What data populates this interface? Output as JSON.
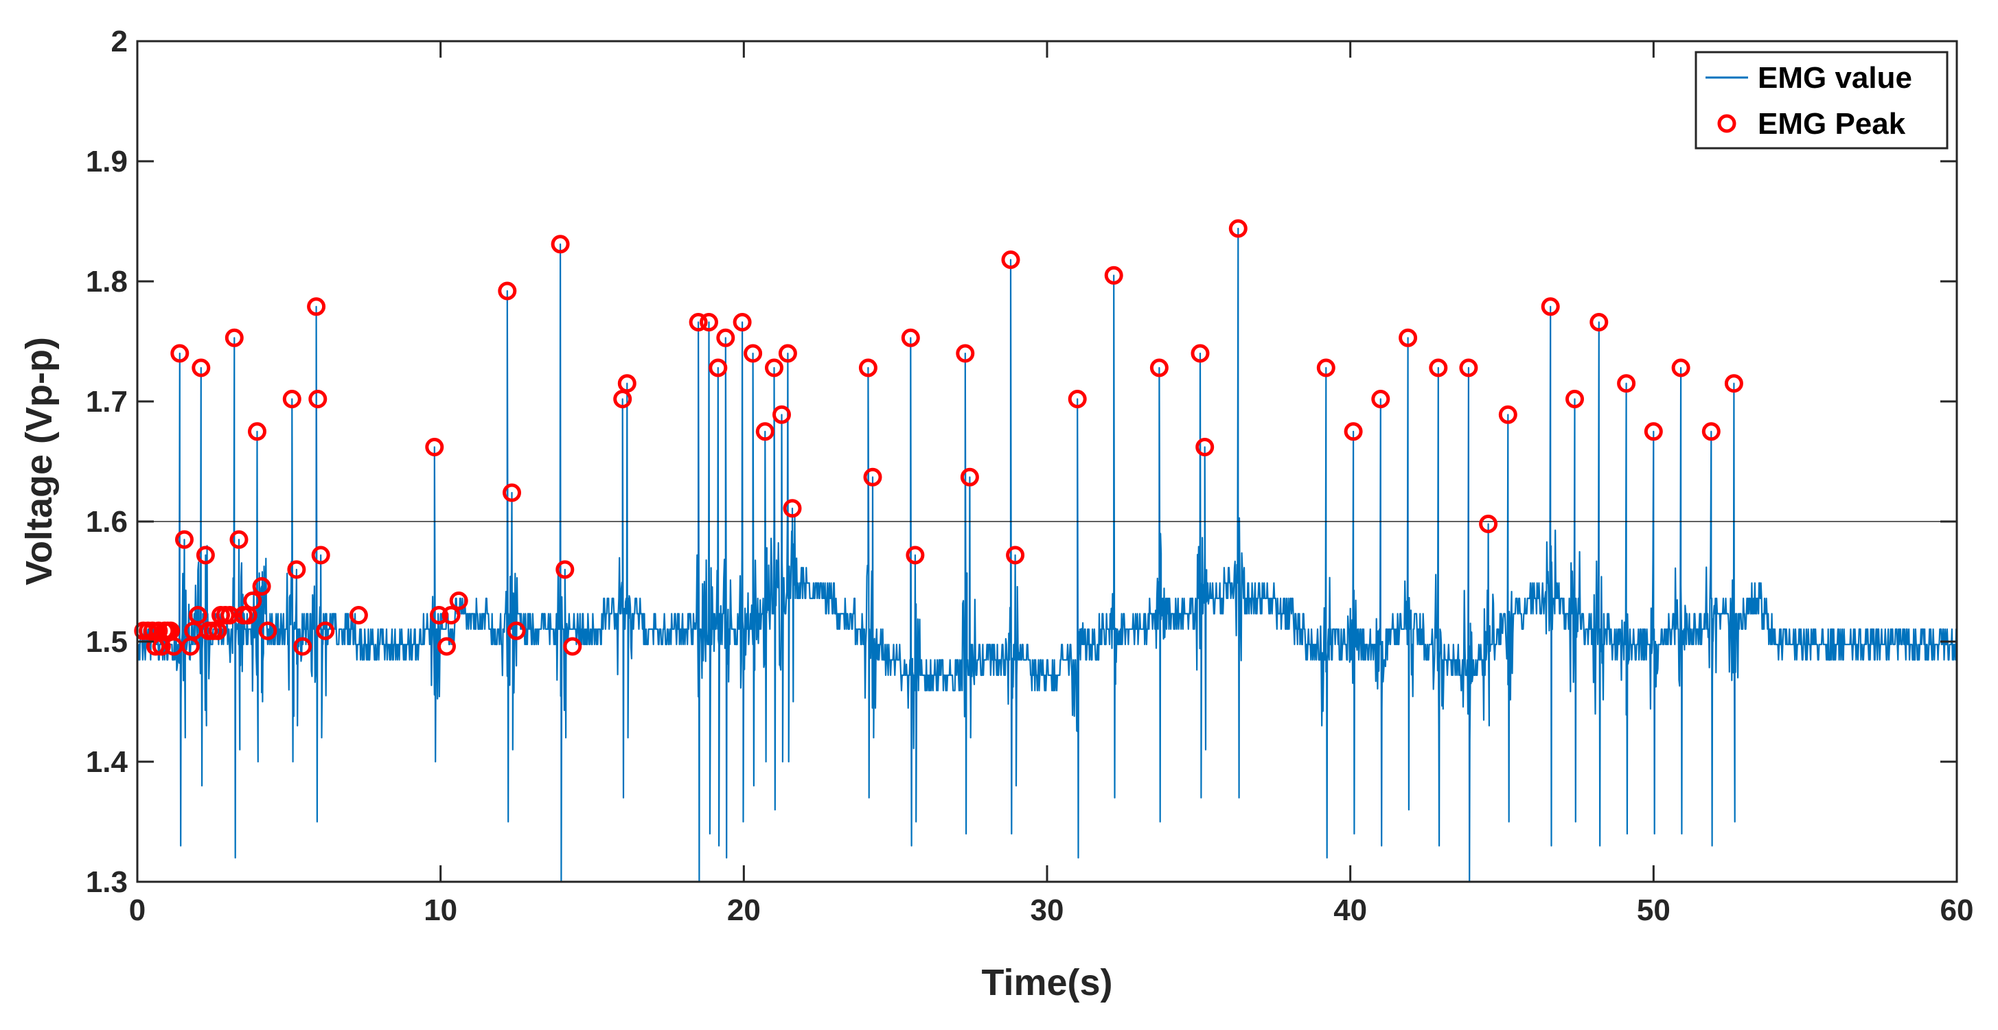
{
  "chart_data": {
    "type": "line",
    "title": "",
    "xlabel": "Time(s)",
    "ylabel": "Voltage (Vp-p)",
    "xlim": [
      0,
      60
    ],
    "ylim": [
      1.3,
      2
    ],
    "xticks": [
      "0",
      "10",
      "20",
      "30",
      "40",
      "50",
      "60"
    ],
    "yticks": [
      "1.3",
      "1.4",
      "1.5",
      "1.6",
      "1.7",
      "1.8",
      "1.9",
      "2"
    ],
    "threshold": 1.6,
    "grid": false,
    "legend_position": "top-right",
    "colors": {
      "signal": "#0072BD",
      "peak": "#FF0000",
      "threshold": "#000000",
      "axes": "#262626"
    },
    "series": [
      {
        "name": "EMG value",
        "style": "line"
      },
      {
        "name": "EMG Peak",
        "style": "circle"
      }
    ],
    "bursts": [
      [
        1.4,
        1.74,
        1.33
      ],
      [
        1.55,
        1.585,
        1.42
      ],
      [
        2.1,
        1.728,
        1.38
      ],
      [
        2.25,
        1.572,
        1.43
      ],
      [
        3.2,
        1.753,
        1.32
      ],
      [
        3.35,
        1.585,
        1.41
      ],
      [
        3.95,
        1.675,
        1.4
      ],
      [
        4.1,
        1.546,
        1.45
      ],
      [
        5.1,
        1.702,
        1.4
      ],
      [
        5.25,
        1.56,
        1.43
      ],
      [
        5.9,
        1.779,
        1.35
      ],
      [
        6.05,
        1.572,
        1.42
      ],
      [
        9.8,
        1.662,
        1.4
      ],
      [
        12.2,
        1.792,
        1.35
      ],
      [
        12.35,
        1.624,
        1.41
      ],
      [
        13.95,
        1.831,
        1.3
      ],
      [
        14.1,
        1.56,
        1.42
      ],
      [
        16.0,
        1.702,
        1.37
      ],
      [
        16.15,
        1.715,
        1.42
      ],
      [
        18.5,
        1.766,
        1.3
      ],
      [
        18.85,
        1.766,
        1.34
      ],
      [
        19.15,
        1.728,
        1.33
      ],
      [
        19.4,
        1.753,
        1.32
      ],
      [
        19.95,
        1.766,
        1.35
      ],
      [
        20.3,
        1.74,
        1.38
      ],
      [
        20.7,
        1.675,
        1.4
      ],
      [
        21.0,
        1.728,
        1.36
      ],
      [
        21.25,
        1.689,
        1.4
      ],
      [
        21.45,
        1.74,
        1.4
      ],
      [
        21.6,
        1.611,
        1.45
      ],
      [
        24.1,
        1.728,
        1.37
      ],
      [
        24.25,
        1.637,
        1.42
      ],
      [
        25.5,
        1.753,
        1.33
      ],
      [
        25.65,
        1.572,
        1.35
      ],
      [
        27.3,
        1.74,
        1.34
      ],
      [
        27.45,
        1.637,
        1.42
      ],
      [
        28.8,
        1.818,
        1.34
      ],
      [
        28.95,
        1.572,
        1.38
      ],
      [
        31.0,
        1.702,
        1.32
      ],
      [
        32.2,
        1.805,
        1.37
      ],
      [
        33.7,
        1.728,
        1.35
      ],
      [
        35.05,
        1.74,
        1.37
      ],
      [
        35.2,
        1.662,
        1.41
      ],
      [
        36.3,
        1.844,
        1.37
      ],
      [
        39.2,
        1.728,
        1.32
      ],
      [
        40.1,
        1.675,
        1.34
      ],
      [
        41.0,
        1.702,
        1.33
      ],
      [
        41.9,
        1.753,
        1.36
      ],
      [
        42.9,
        1.728,
        1.33
      ],
      [
        43.9,
        1.728,
        1.3
      ],
      [
        44.55,
        1.598,
        1.43
      ],
      [
        45.2,
        1.689,
        1.35
      ],
      [
        46.6,
        1.779,
        1.33
      ],
      [
        47.4,
        1.702,
        1.35
      ],
      [
        48.2,
        1.766,
        1.33
      ],
      [
        49.1,
        1.715,
        1.34
      ],
      [
        50.0,
        1.675,
        1.34
      ],
      [
        50.9,
        1.728,
        1.34
      ],
      [
        51.9,
        1.675,
        1.33
      ],
      [
        52.65,
        1.715,
        1.35
      ]
    ],
    "peaks": [
      [
        0.2,
        1.509
      ],
      [
        0.35,
        1.509
      ],
      [
        0.5,
        1.509
      ],
      [
        0.6,
        1.496
      ],
      [
        0.7,
        1.509
      ],
      [
        0.8,
        1.496
      ],
      [
        0.9,
        1.509
      ],
      [
        1.0,
        1.509
      ],
      [
        1.1,
        1.509
      ],
      [
        1.2,
        1.496
      ],
      [
        1.4,
        1.74
      ],
      [
        1.55,
        1.585
      ],
      [
        1.75,
        1.496
      ],
      [
        1.85,
        1.509
      ],
      [
        2.0,
        1.522
      ],
      [
        2.1,
        1.728
      ],
      [
        2.25,
        1.572
      ],
      [
        2.35,
        1.509
      ],
      [
        2.5,
        1.509
      ],
      [
        2.65,
        1.509
      ],
      [
        2.75,
        1.522
      ],
      [
        2.9,
        1.522
      ],
      [
        3.05,
        1.522
      ],
      [
        3.2,
        1.753
      ],
      [
        3.35,
        1.585
      ],
      [
        3.5,
        1.522
      ],
      [
        3.65,
        1.522
      ],
      [
        3.8,
        1.534
      ],
      [
        3.95,
        1.675
      ],
      [
        4.1,
        1.546
      ],
      [
        4.3,
        1.509
      ],
      [
        5.1,
        1.702
      ],
      [
        5.25,
        1.56
      ],
      [
        5.45,
        1.496
      ],
      [
        5.9,
        1.779
      ],
      [
        5.95,
        1.702
      ],
      [
        6.05,
        1.572
      ],
      [
        6.2,
        1.509
      ],
      [
        7.3,
        1.522
      ],
      [
        9.8,
        1.662
      ],
      [
        9.95,
        1.522
      ],
      [
        10.2,
        1.496
      ],
      [
        10.35,
        1.522
      ],
      [
        10.6,
        1.534
      ],
      [
        12.2,
        1.792
      ],
      [
        12.35,
        1.624
      ],
      [
        12.5,
        1.509
      ],
      [
        13.95,
        1.831
      ],
      [
        14.1,
        1.56
      ],
      [
        14.35,
        1.496
      ],
      [
        16.0,
        1.702
      ],
      [
        16.15,
        1.715
      ],
      [
        18.5,
        1.766
      ],
      [
        18.85,
        1.766
      ],
      [
        19.15,
        1.728
      ],
      [
        19.4,
        1.753
      ],
      [
        19.95,
        1.766
      ],
      [
        20.3,
        1.74
      ],
      [
        20.7,
        1.675
      ],
      [
        21.0,
        1.728
      ],
      [
        21.25,
        1.689
      ],
      [
        21.45,
        1.74
      ],
      [
        21.6,
        1.611
      ],
      [
        24.1,
        1.728
      ],
      [
        24.25,
        1.637
      ],
      [
        25.5,
        1.753
      ],
      [
        25.65,
        1.572
      ],
      [
        27.3,
        1.74
      ],
      [
        27.45,
        1.637
      ],
      [
        28.8,
        1.818
      ],
      [
        28.95,
        1.572
      ],
      [
        31.0,
        1.702
      ],
      [
        32.2,
        1.805
      ],
      [
        33.7,
        1.728
      ],
      [
        35.05,
        1.74
      ],
      [
        35.2,
        1.662
      ],
      [
        36.3,
        1.844
      ],
      [
        39.2,
        1.728
      ],
      [
        40.1,
        1.675
      ],
      [
        41.0,
        1.702
      ],
      [
        41.9,
        1.753
      ],
      [
        42.9,
        1.728
      ],
      [
        43.9,
        1.728
      ],
      [
        44.55,
        1.598
      ],
      [
        45.2,
        1.689
      ],
      [
        46.6,
        1.779
      ],
      [
        47.4,
        1.702
      ],
      [
        48.2,
        1.766
      ],
      [
        49.1,
        1.715
      ],
      [
        50.0,
        1.675
      ],
      [
        50.9,
        1.728
      ],
      [
        51.9,
        1.675
      ],
      [
        52.65,
        1.715
      ]
    ],
    "baseline": [
      [
        0,
        1.5
      ],
      [
        1,
        1.5
      ],
      [
        2,
        1.505
      ],
      [
        3,
        1.51
      ],
      [
        4,
        1.515
      ],
      [
        5,
        1.51
      ],
      [
        6,
        1.505
      ],
      [
        7,
        1.505
      ],
      [
        8,
        1.5
      ],
      [
        9,
        1.5
      ],
      [
        10,
        1.51
      ],
      [
        11,
        1.525
      ],
      [
        12,
        1.51
      ],
      [
        13,
        1.51
      ],
      [
        14,
        1.515
      ],
      [
        15,
        1.515
      ],
      [
        16,
        1.52
      ],
      [
        17,
        1.515
      ],
      [
        18,
        1.515
      ],
      [
        19,
        1.505
      ],
      [
        20,
        1.51
      ],
      [
        21,
        1.53
      ],
      [
        21.7,
        1.55
      ],
      [
        22,
        1.545
      ],
      [
        23,
        1.53
      ],
      [
        24,
        1.51
      ],
      [
        25,
        1.48
      ],
      [
        26,
        1.47
      ],
      [
        27,
        1.475
      ],
      [
        28,
        1.49
      ],
      [
        29,
        1.485
      ],
      [
        30,
        1.47
      ],
      [
        31,
        1.49
      ],
      [
        32,
        1.51
      ],
      [
        33,
        1.515
      ],
      [
        34,
        1.52
      ],
      [
        35,
        1.53
      ],
      [
        36,
        1.545
      ],
      [
        37,
        1.54
      ],
      [
        38,
        1.52
      ],
      [
        39,
        1.49
      ],
      [
        40,
        1.495
      ],
      [
        41,
        1.5
      ],
      [
        42,
        1.515
      ],
      [
        43,
        1.49
      ],
      [
        44,
        1.47
      ],
      [
        45,
        1.51
      ],
      [
        46,
        1.535
      ],
      [
        47,
        1.53
      ],
      [
        48,
        1.51
      ],
      [
        49,
        1.5
      ],
      [
        50,
        1.5
      ],
      [
        51,
        1.51
      ],
      [
        52,
        1.52
      ],
      [
        53,
        1.525
      ],
      [
        53.5,
        1.535
      ],
      [
        54,
        1.5
      ],
      [
        60,
        1.5
      ]
    ]
  }
}
